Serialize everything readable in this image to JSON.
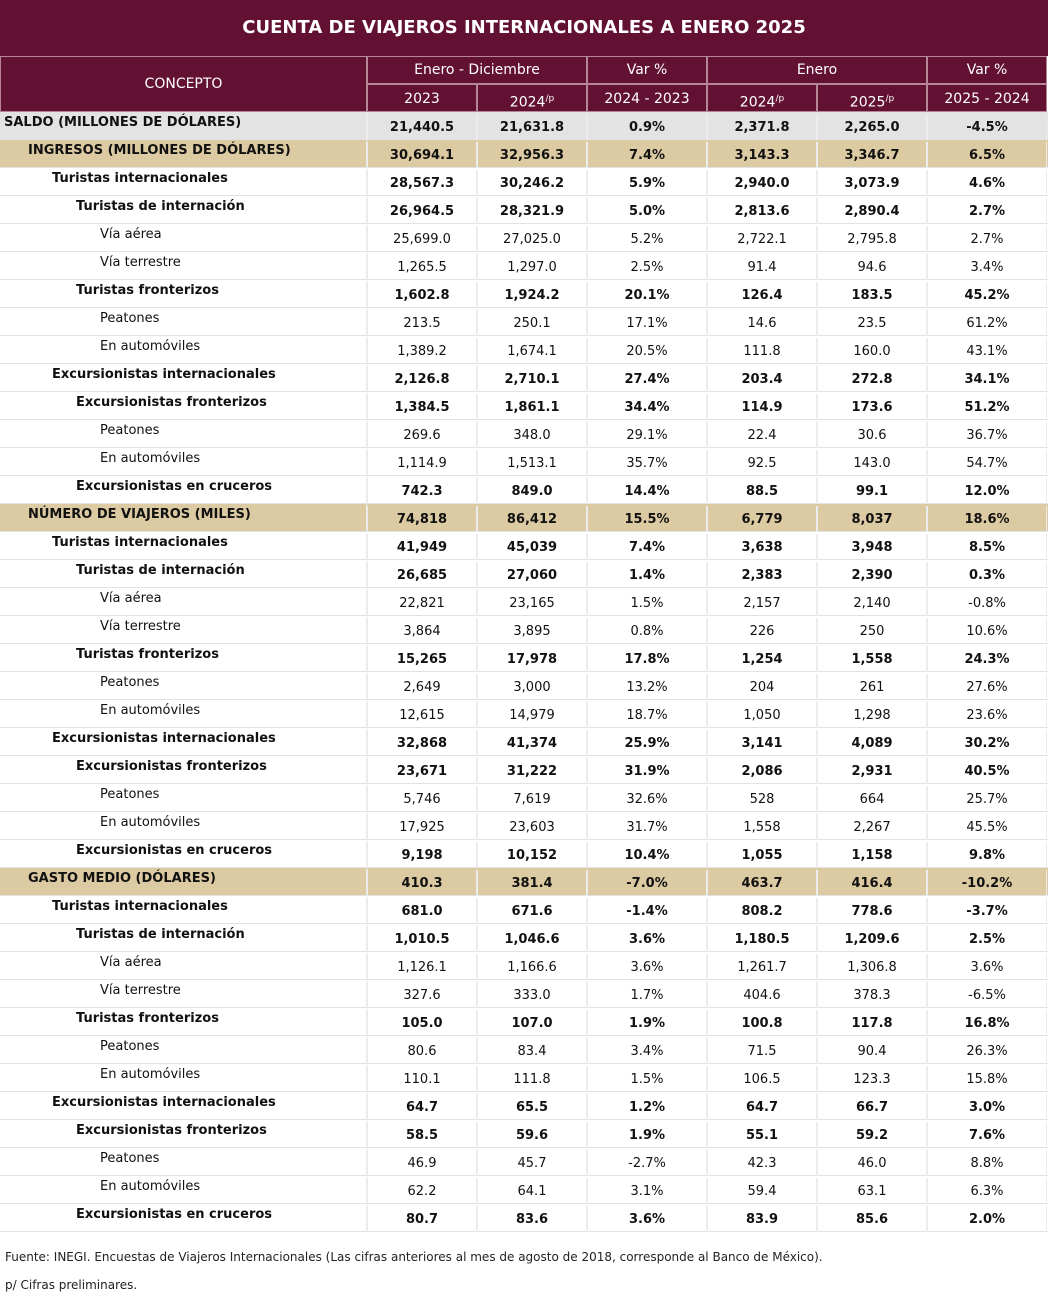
{
  "title": "CUENTA DE VIAJEROS INTERNACIONALES A ENERO 2025",
  "header": {
    "concept": "CONCEPTO",
    "groups": [
      "Enero - Diciembre",
      "Var %",
      "Enero",
      "Var %"
    ],
    "columns": [
      {
        "label": "2023"
      },
      {
        "label": "2024",
        "note": "/p"
      },
      {
        "label": "2024 - 2023"
      },
      {
        "label": "2024",
        "note": "/p"
      },
      {
        "label": "2025",
        "note": "/p"
      },
      {
        "label": "2025 - 2024"
      }
    ]
  },
  "rows": [
    {
      "label": "SALDO (MILLONES DE DÓLARES)",
      "level": 0,
      "cells": [
        "21,440.5",
        "21,631.8",
        "0.9%",
        "2,371.8",
        "2,265.0",
        "-4.5%"
      ]
    },
    {
      "label": "INGRESOS (MILLONES DE DÓLARES)",
      "level": 1,
      "cells": [
        "30,694.1",
        "32,956.3",
        "7.4%",
        "3,143.3",
        "3,346.7",
        "6.5%"
      ]
    },
    {
      "label": "Turistas internacionales",
      "level": 2,
      "cells": [
        "28,567.3",
        "30,246.2",
        "5.9%",
        "2,940.0",
        "3,073.9",
        "4.6%"
      ]
    },
    {
      "label": "Turistas de internación",
      "level": 3,
      "cells": [
        "26,964.5",
        "28,321.9",
        "5.0%",
        "2,813.6",
        "2,890.4",
        "2.7%"
      ]
    },
    {
      "label": "Vía aérea",
      "level": 4,
      "cells": [
        "25,699.0",
        "27,025.0",
        "5.2%",
        "2,722.1",
        "2,795.8",
        "2.7%"
      ]
    },
    {
      "label": "Vía terrestre",
      "level": 4,
      "cells": [
        "1,265.5",
        "1,297.0",
        "2.5%",
        "91.4",
        "94.6",
        "3.4%"
      ]
    },
    {
      "label": "Turistas fronterizos",
      "level": 3,
      "cells": [
        "1,602.8",
        "1,924.2",
        "20.1%",
        "126.4",
        "183.5",
        "45.2%"
      ]
    },
    {
      "label": "Peatones",
      "level": 4,
      "cells": [
        "213.5",
        "250.1",
        "17.1%",
        "14.6",
        "23.5",
        "61.2%"
      ]
    },
    {
      "label": "En automóviles",
      "level": 4,
      "cells": [
        "1,389.2",
        "1,674.1",
        "20.5%",
        "111.8",
        "160.0",
        "43.1%"
      ]
    },
    {
      "label": "Excursionistas internacionales",
      "level": 2,
      "cells": [
        "2,126.8",
        "2,710.1",
        "27.4%",
        "203.4",
        "272.8",
        "34.1%"
      ]
    },
    {
      "label": "Excursionistas fronterizos",
      "level": 3,
      "cells": [
        "1,384.5",
        "1,861.1",
        "34.4%",
        "114.9",
        "173.6",
        "51.2%"
      ]
    },
    {
      "label": "Peatones",
      "level": 4,
      "cells": [
        "269.6",
        "348.0",
        "29.1%",
        "22.4",
        "30.6",
        "36.7%"
      ]
    },
    {
      "label": "En automóviles",
      "level": 4,
      "cells": [
        "1,114.9",
        "1,513.1",
        "35.7%",
        "92.5",
        "143.0",
        "54.7%"
      ]
    },
    {
      "label": "Excursionistas en cruceros",
      "level": 3,
      "cells": [
        "742.3",
        "849.0",
        "14.4%",
        "88.5",
        "99.1",
        "12.0%"
      ]
    },
    {
      "label": "NÚMERO DE VIAJEROS (MILES)",
      "level": 1,
      "cells": [
        "74,818",
        "86,412",
        "15.5%",
        "6,779",
        "8,037",
        "18.6%"
      ]
    },
    {
      "label": "Turistas internacionales",
      "level": 2,
      "cells": [
        "41,949",
        "45,039",
        "7.4%",
        "3,638",
        "3,948",
        "8.5%"
      ]
    },
    {
      "label": "Turistas de internación",
      "level": 3,
      "cells": [
        "26,685",
        "27,060",
        "1.4%",
        "2,383",
        "2,390",
        "0.3%"
      ]
    },
    {
      "label": "Vía aérea",
      "level": 4,
      "cells": [
        "22,821",
        "23,165",
        "1.5%",
        "2,157",
        "2,140",
        "-0.8%"
      ]
    },
    {
      "label": "Vía terrestre",
      "level": 4,
      "cells": [
        "3,864",
        "3,895",
        "0.8%",
        "226",
        "250",
        "10.6%"
      ]
    },
    {
      "label": "Turistas fronterizos",
      "level": 3,
      "cells": [
        "15,265",
        "17,978",
        "17.8%",
        "1,254",
        "1,558",
        "24.3%"
      ]
    },
    {
      "label": "Peatones",
      "level": 4,
      "cells": [
        "2,649",
        "3,000",
        "13.2%",
        "204",
        "261",
        "27.6%"
      ]
    },
    {
      "label": "En automóviles",
      "level": 4,
      "cells": [
        "12,615",
        "14,979",
        "18.7%",
        "1,050",
        "1,298",
        "23.6%"
      ]
    },
    {
      "label": "Excursionistas internacionales",
      "level": 2,
      "cells": [
        "32,868",
        "41,374",
        "25.9%",
        "3,141",
        "4,089",
        "30.2%"
      ]
    },
    {
      "label": "Excursionistas fronterizos",
      "level": 3,
      "cells": [
        "23,671",
        "31,222",
        "31.9%",
        "2,086",
        "2,931",
        "40.5%"
      ]
    },
    {
      "label": "Peatones",
      "level": 4,
      "cells": [
        "5,746",
        "7,619",
        "32.6%",
        "528",
        "664",
        "25.7%"
      ]
    },
    {
      "label": "En automóviles",
      "level": 4,
      "cells": [
        "17,925",
        "23,603",
        "31.7%",
        "1,558",
        "2,267",
        "45.5%"
      ]
    },
    {
      "label": "Excursionistas en cruceros",
      "level": 3,
      "cells": [
        "9,198",
        "10,152",
        "10.4%",
        "1,055",
        "1,158",
        "9.8%"
      ]
    },
    {
      "label": "GASTO MEDIO (DÓLARES)",
      "level": 1,
      "cells": [
        "410.3",
        "381.4",
        "-7.0%",
        "463.7",
        "416.4",
        "-10.2%"
      ]
    },
    {
      "label": "Turistas internacionales",
      "level": 2,
      "cells": [
        "681.0",
        "671.6",
        "-1.4%",
        "808.2",
        "778.6",
        "-3.7%"
      ]
    },
    {
      "label": "Turistas de internación",
      "level": 3,
      "cells": [
        "1,010.5",
        "1,046.6",
        "3.6%",
        "1,180.5",
        "1,209.6",
        "2.5%"
      ]
    },
    {
      "label": "Vía aérea",
      "level": 4,
      "cells": [
        "1,126.1",
        "1,166.6",
        "3.6%",
        "1,261.7",
        "1,306.8",
        "3.6%"
      ]
    },
    {
      "label": "Vía terrestre",
      "level": 4,
      "cells": [
        "327.6",
        "333.0",
        "1.7%",
        "404.6",
        "378.3",
        "-6.5%"
      ]
    },
    {
      "label": "Turistas fronterizos",
      "level": 3,
      "cells": [
        "105.0",
        "107.0",
        "1.9%",
        "100.8",
        "117.8",
        "16.8%"
      ]
    },
    {
      "label": "Peatones",
      "level": 4,
      "cells": [
        "80.6",
        "83.4",
        "3.4%",
        "71.5",
        "90.4",
        "26.3%"
      ]
    },
    {
      "label": "En automóviles",
      "level": 4,
      "cells": [
        "110.1",
        "111.8",
        "1.5%",
        "106.5",
        "123.3",
        "15.8%"
      ]
    },
    {
      "label": "Excursionistas internacionales",
      "level": 2,
      "cells": [
        "64.7",
        "65.5",
        "1.2%",
        "64.7",
        "66.7",
        "3.0%"
      ]
    },
    {
      "label": "Excursionistas fronterizos",
      "level": 3,
      "cells": [
        "58.5",
        "59.6",
        "1.9%",
        "55.1",
        "59.2",
        "7.6%"
      ]
    },
    {
      "label": "Peatones",
      "level": 4,
      "cells": [
        "46.9",
        "45.7",
        "-2.7%",
        "42.3",
        "46.0",
        "8.8%"
      ]
    },
    {
      "label": "En automóviles",
      "level": 4,
      "cells": [
        "62.2",
        "64.1",
        "3.1%",
        "59.4",
        "63.1",
        "6.3%"
      ]
    },
    {
      "label": "Excursionistas en cruceros",
      "level": 3,
      "cells": [
        "80.7",
        "83.6",
        "3.6%",
        "83.9",
        "85.6",
        "2.0%"
      ]
    }
  ],
  "notes": [
    "Fuente: INEGI. Encuestas de Viajeros Internacionales (Las cifras anteriores al mes de agosto de 2018, corresponde al Banco de México).",
    "p/ Cifras preliminares."
  ]
}
